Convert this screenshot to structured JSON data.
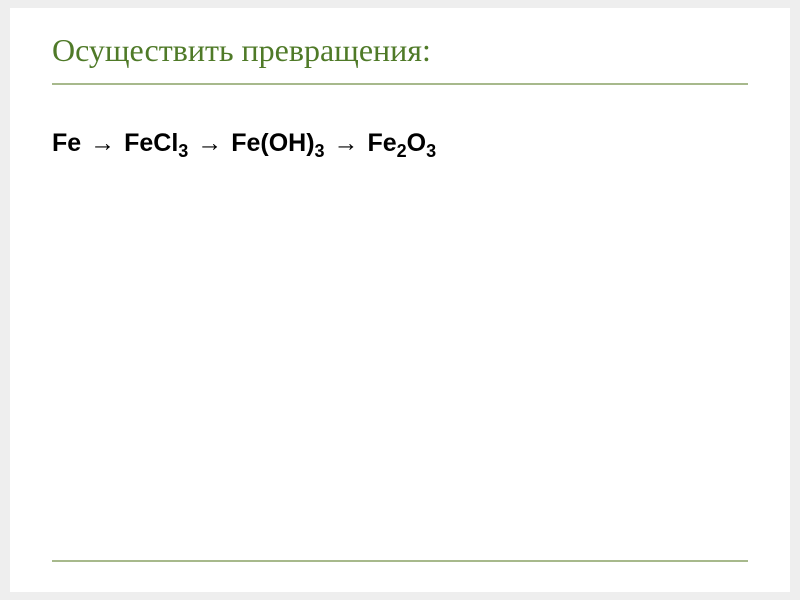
{
  "slide": {
    "background_color": "#eeeeee",
    "paper_color": "#ffffff",
    "title": {
      "text": "Осуществить превращения:",
      "color": "#4f7a28",
      "underline_color": "#a7b98c",
      "fontsize_pt": 32
    },
    "body": {
      "reaction_chain": {
        "type": "sequence",
        "arrow_glyph": "→",
        "items": [
          {
            "formula_html": "Fe"
          },
          {
            "formula_html": "FeCl<sub>3</sub>"
          },
          {
            "formula_html": "Fe(OH)<sub>3</sub>"
          },
          {
            "formula_html": "Fe<sub>2</sub>O<sub>3</sub>"
          }
        ],
        "text_color": "#000000",
        "font_family": "Arial",
        "font_weight": "bold",
        "fontsize_pt": 25
      }
    },
    "bottom_rule_color": "#a7b98c"
  }
}
